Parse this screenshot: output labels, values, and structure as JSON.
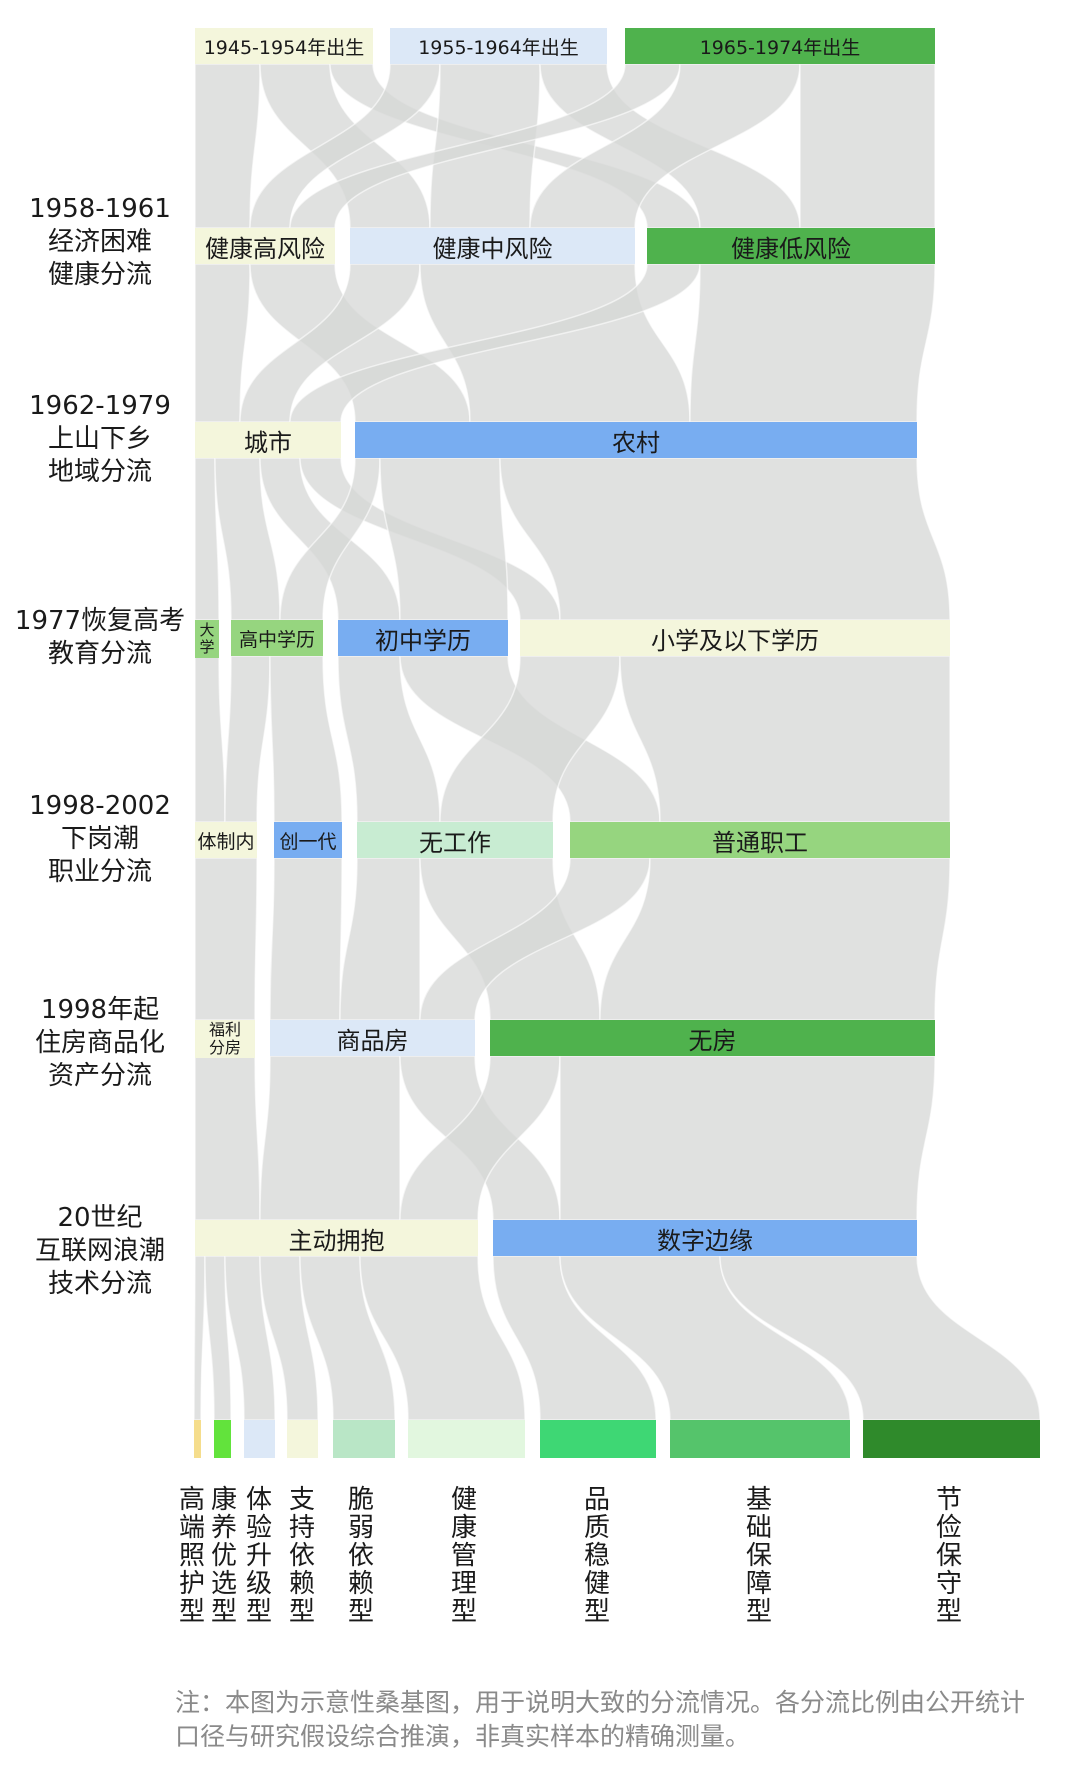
{
  "row_labels": [
    {
      "text": "1958-1961\n经济困难\n健康分流"
    },
    {
      "text": "1962-1979\n上山下乡\n地域分流"
    },
    {
      "text": "1977恢复高考\n教育分流"
    },
    {
      "text": "1998-2002\n下岗潮\n职业分流"
    },
    {
      "text": "1998年起\n住房商品化\n资产分流"
    },
    {
      "text": "20世纪\n互联网浪潮\n技术分流"
    }
  ],
  "cohorts": [
    "1945-1954年出生",
    "1955-1964年出生",
    "1965-1974年出生"
  ],
  "health": [
    "健康高风险",
    "健康中风险",
    "健康低风险"
  ],
  "region": [
    "城市",
    "农村"
  ],
  "education": [
    "大学",
    "高中学历",
    "初中学历",
    "小学及以下学历"
  ],
  "career": [
    "体制内",
    "创一代",
    "无工作",
    "普通职工"
  ],
  "housing": [
    "福利分房",
    "商品房",
    "无房"
  ],
  "tech": [
    "主动拥抱",
    "数字边缘"
  ],
  "outcomes": [
    "高端照护型",
    "康养优选型",
    "体验升级型",
    "支持依赖型",
    "脆弱依赖型",
    "健康管理型",
    "品质稳健型",
    "基础保障型",
    "节俭保守型"
  ],
  "colors": {
    "flow": "#d6d7d6",
    "cream": "#f4f6dc",
    "pale_blue": "#dce8f7",
    "blue": "#78adf1",
    "green_dark": "#4fb24d",
    "green_light": "#96d57f",
    "mint": "#c8ecd2",
    "note": "#8a8a8a"
  },
  "note": "注：本图为示意性桑基图，用于说明大致的分流情况。各分流比例由公开统计口径与研究假设综合推演，非真实样本的精确测量。"
}
